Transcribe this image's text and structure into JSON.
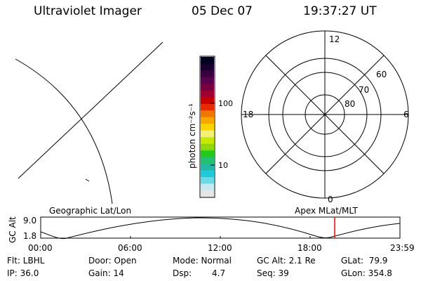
{
  "header": {
    "instrument": "Ultraviolet Imager",
    "date": "05 Dec 07",
    "time": "19:37:27 UT"
  },
  "colorbar": {
    "unit_label": "photon cm⁻²s⁻¹",
    "tick_high": "100",
    "tick_low": "10",
    "colors": [
      "#e6e6e6",
      "#c8e8f0",
      "#6fd8e6",
      "#22c8d8",
      "#22b8a8",
      "#22c070",
      "#22c81a",
      "#8ad80e",
      "#c8e800",
      "#f4f07a",
      "#f8d400",
      "#f6a800",
      "#f07800",
      "#e82a00",
      "#c80000",
      "#a00030",
      "#780040",
      "#5a0050",
      "#3c0040",
      "#1a0030",
      "#000020"
    ]
  },
  "polar_plot": {
    "mlt_labels": {
      "top": "12",
      "bottom": "0",
      "left": "18",
      "right": "6"
    },
    "lat_labels": [
      "60",
      "70",
      "80"
    ]
  },
  "timeline": {
    "y_axis_label": "GC Alt",
    "y_ticks": [
      "9.0",
      "1.8"
    ],
    "left_title": "Geographic Lat/Lon",
    "right_title": "Apex MLat/MLT",
    "x_ticks": [
      "00:00",
      "06:00",
      "12:00",
      "18:00",
      "23:59"
    ],
    "marker_color": "#ff0000"
  },
  "status": {
    "col1": [
      "Flt: LBHL",
      "IP: 36.0"
    ],
    "col2": [
      "Door: Open",
      "Gain: 14"
    ],
    "col3_mode": "Mode: Normal",
    "col3_dsp": "Dsp:",
    "col3_dsp_value": "4.7",
    "col4": [
      "GC Alt: 2.1 Re",
      "Seq: 39"
    ],
    "col5": [
      "GLat:  79.9",
      "GLon: 354.8"
    ]
  }
}
